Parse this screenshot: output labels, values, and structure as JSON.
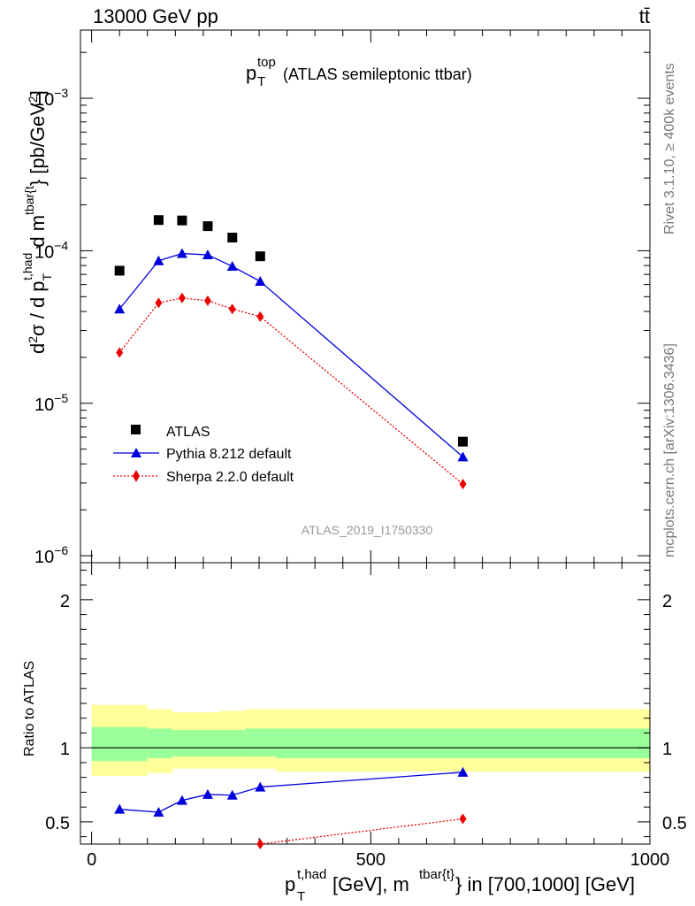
{
  "header": {
    "energy_label": "13000 GeV pp",
    "process_label": "tt̄"
  },
  "side_labels": {
    "rivet": "Rivet 3.1.10, ≥ 400k events",
    "mcplots": "mcplots.cern.ch [arXiv:1306.3436]"
  },
  "chart_data": [
    {
      "type": "scatter",
      "panel": "main",
      "title_main": "p",
      "title_sub": "T",
      "title_sup": "top",
      "title_suffix": "(ATLAS semileptonic ttbar)",
      "ylabel": "d²σ / d p_T^{t,had} d m^{tbar{t}} [pb/GeV²]",
      "yscale": "log",
      "ylim": [
        9e-07,
        0.0028
      ],
      "ytick_labels": [
        {
          "base": "10",
          "exp": "−3"
        },
        {
          "base": "10",
          "exp": "−4"
        },
        {
          "base": "10",
          "exp": "−5"
        },
        {
          "base": "10",
          "exp": "−6"
        }
      ],
      "xlim": [
        -20,
        1000
      ],
      "x": [
        50,
        120,
        162,
        208,
        252,
        302,
        665
      ],
      "series": [
        {
          "name": "ATLAS",
          "marker": "square",
          "color": "#000000",
          "values": [
            7.4e-05,
            0.000159,
            0.000158,
            0.000145,
            0.000122,
            9.2e-05,
            5.6e-06
          ]
        },
        {
          "name": "Pythia 8.212 default",
          "marker": "triangle",
          "color": "#0000dd",
          "line": "solid",
          "values": [
            4.15e-05,
            8.6e-05,
            9.6e-05,
            9.4e-05,
            7.9e-05,
            6.3e-05,
            4.45e-06
          ]
        },
        {
          "name": "Sherpa 2.2.0 default",
          "marker": "diamond",
          "color": "#ee0000",
          "line": "dotted",
          "values": [
            2.15e-05,
            4.55e-05,
            4.9e-05,
            4.7e-05,
            4.15e-05,
            3.7e-05,
            2.95e-06
          ]
        }
      ],
      "legend_position": "lower-left",
      "watermark": "ATLAS_2019_I1750330"
    },
    {
      "type": "scatter",
      "panel": "ratio",
      "ylabel": "Ratio to ATLAS",
      "ylim": [
        0.35,
        2.25
      ],
      "ytick_labels": [
        "2",
        "1",
        "0.5"
      ],
      "xlim": [
        -20,
        1000
      ],
      "xtick_labels": [
        "0",
        "500",
        "1000"
      ],
      "xlabel_main": "p",
      "xlabel_sub": "T",
      "xlabel_sup": "t,had",
      "xlabel_mid": " [GeV], m",
      "xlabel_sup2": "tbar{t}",
      "xlabel_tail": "} in [700,1000] [GeV]",
      "reference_line": 1,
      "uncertainty_bins": [
        {
          "lo": 0,
          "hi": 100,
          "green": [
            0.91,
            1.14
          ],
          "yellow": [
            0.81,
            1.29
          ]
        },
        {
          "lo": 100,
          "hi": 145,
          "green": [
            0.93,
            1.13
          ],
          "yellow": [
            0.83,
            1.26
          ]
        },
        {
          "lo": 145,
          "hi": 230,
          "green": [
            0.94,
            1.12
          ],
          "yellow": [
            0.86,
            1.24
          ]
        },
        {
          "lo": 230,
          "hi": 275,
          "green": [
            0.94,
            1.12
          ],
          "yellow": [
            0.86,
            1.25
          ]
        },
        {
          "lo": 275,
          "hi": 330,
          "green": [
            0.94,
            1.13
          ],
          "yellow": [
            0.86,
            1.26
          ]
        },
        {
          "lo": 330,
          "hi": 1000,
          "green": [
            0.93,
            1.13
          ],
          "yellow": [
            0.84,
            1.26
          ]
        }
      ],
      "x": [
        50,
        120,
        162,
        208,
        252,
        302,
        665
      ],
      "series": [
        {
          "name": "Pythia 8.212 default",
          "color": "#0000dd",
          "values": [
            0.585,
            0.565,
            0.645,
            0.685,
            0.68,
            0.735,
            0.835
          ],
          "errors": [
            0.02,
            0.02,
            0.022,
            0.022,
            0.022,
            0.022,
            0.022
          ]
        },
        {
          "name": "Sherpa 2.2.0 default",
          "color": "#ee0000",
          "x": [
            302,
            665
          ],
          "values": [
            0.35,
            0.52
          ]
        }
      ]
    }
  ]
}
